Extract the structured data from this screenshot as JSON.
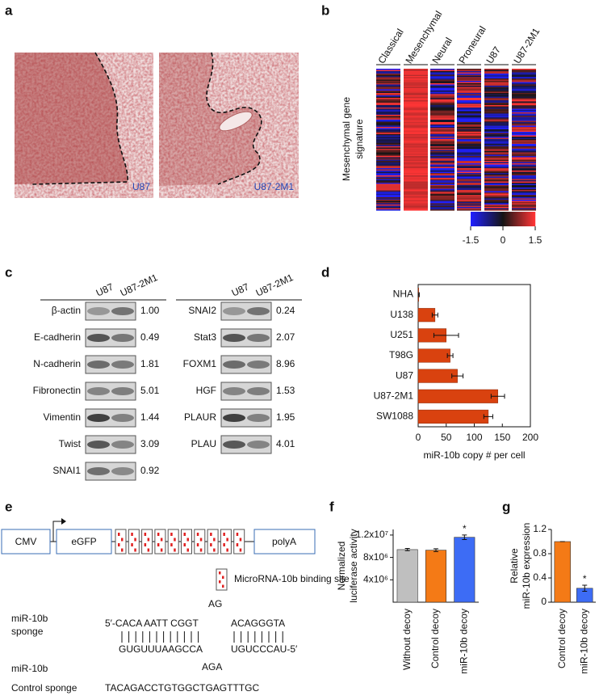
{
  "panel_labels": [
    "a",
    "b",
    "c",
    "d",
    "e",
    "f",
    "g"
  ],
  "panel_a": {
    "sample_labels": [
      "U87",
      "U87-2M1"
    ]
  },
  "panel_b": {
    "columns": [
      "Classical",
      "Mesenchymal",
      "Neural",
      "Proneural",
      "U87",
      "U87-2M1"
    ],
    "row_label_lines": [
      "Mesenchymal gene",
      "signature"
    ],
    "colorbar": {
      "lim": [
        -1.5,
        1.5
      ],
      "ticks": [
        -1.5,
        0,
        1.5
      ],
      "colors": [
        "#2020ff",
        "#151515",
        "#ff3535"
      ]
    }
  },
  "panel_c": {
    "columns": [
      "U87",
      "U87-2M1"
    ],
    "left_blot": [
      [
        "β-actin",
        "1.00"
      ],
      [
        "E-cadherin",
        "0.49"
      ],
      [
        "N-cadherin",
        "1.81"
      ],
      [
        "Fibronectin",
        "5.01"
      ],
      [
        "Vimentin",
        "1.44"
      ],
      [
        "Twist",
        "3.09"
      ],
      [
        "SNAI1",
        "0.92"
      ]
    ],
    "right_blot": [
      [
        "SNAI2",
        "0.24"
      ],
      [
        "Stat3",
        "2.07"
      ],
      [
        "FOXM1",
        "8.96"
      ],
      [
        "HGF",
        "1.53"
      ],
      [
        "PLAUR",
        "1.95"
      ],
      [
        "PLAU",
        "4.01"
      ]
    ]
  },
  "panel_e": {
    "elements": [
      "CMV",
      "eGFP",
      "polyA"
    ],
    "legend": "MicroRNA-10b binding site",
    "sponge_label_lines": [
      "miR-10b",
      "sponge"
    ],
    "sponge_seq": [
      "5′-CACA AATT CGGT",
      "ACAGGGTA"
    ],
    "sponge_bulge": "AG",
    "mirna_seq": [
      "GUGUUUAAGCCA",
      "UGUCCCAU-5′"
    ],
    "mirna_bulge": "AGA",
    "mirna_label": "miR-10b",
    "control_label": "Control sponge",
    "control_seq": "TACAGACCTGTGGCTGAGTTTGC"
  },
  "chart_data": [
    {
      "type": "hbar",
      "categories": [
        "NHA",
        "U138",
        "U251",
        "T98G",
        "U87",
        "U87-2M1",
        "SW1088"
      ],
      "values": [
        1,
        30,
        50,
        57,
        70,
        142,
        125
      ],
      "errors": [
        1,
        5,
        22,
        5,
        10,
        12,
        8
      ],
      "color": "#d9420f",
      "xlabel": "miR-10b copy # per cell",
      "xlim": [
        0,
        200
      ],
      "xticks": [
        0,
        50,
        100,
        150,
        200
      ]
    },
    {
      "type": "bar",
      "categories": [
        "Without decoy",
        "Control decoy",
        "miR-10b decoy"
      ],
      "values": [
        9400000,
        9300000,
        11600000
      ],
      "errors": [
        200000,
        250000,
        400000
      ],
      "colors": [
        "#bfbfbf",
        "#f47a16",
        "#3d6cf5"
      ],
      "ylabel_lines": [
        "Normalized",
        "luciferase activity"
      ],
      "ylim": [
        0,
        13000000
      ],
      "yticks": [
        {
          "value": 4000000,
          "label": "4x10⁶"
        },
        {
          "value": 8000000,
          "label": "8x10⁶"
        },
        {
          "value": 12000000,
          "label": "1.2x10⁷"
        }
      ],
      "annotations": [
        {
          "text": "*",
          "category": "miR-10b decoy"
        }
      ]
    },
    {
      "type": "bar",
      "categories": [
        "Control decoy",
        "miR-10b decoy"
      ],
      "values": [
        1.0,
        0.23
      ],
      "errors": [
        0,
        0.05
      ],
      "colors": [
        "#f47a16",
        "#3d6cf5"
      ],
      "ylabel_lines": [
        "Relative",
        "miR-10b expression"
      ],
      "ylim": [
        0,
        1.2
      ],
      "yticks": [
        0,
        0.4,
        0.8,
        1.2
      ],
      "annotations": [
        {
          "text": "*",
          "category": "miR-10b decoy"
        }
      ]
    }
  ]
}
